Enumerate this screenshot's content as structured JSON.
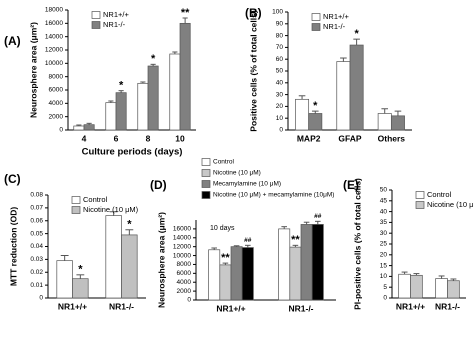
{
  "chart_data": [
    {
      "type": "bar",
      "label": "(A)",
      "ylabel": "Neurosphere area (μm²)",
      "xlabel": "Culture periods (days)",
      "categories": [
        "4",
        "6",
        "8",
        "10"
      ],
      "series": [
        {
          "name": "NR1+/+",
          "color": "#ffffff",
          "values": [
            600,
            4100,
            7000,
            11400
          ],
          "errors": [
            150,
            250,
            200,
            300
          ],
          "signif": [
            null,
            null,
            null,
            null
          ]
        },
        {
          "name": "NR1-/-",
          "color": "#808080",
          "values": [
            800,
            5600,
            9600,
            16000
          ],
          "errors": [
            200,
            300,
            250,
            800
          ],
          "signif": [
            null,
            "*",
            "*",
            "**"
          ]
        }
      ],
      "ylim": [
        0,
        18000
      ],
      "yticks": [
        0,
        2000,
        4000,
        6000,
        8000,
        10000,
        12000,
        14000,
        16000,
        18000
      ],
      "legend": "upper left"
    },
    {
      "type": "bar",
      "label": "(B)",
      "ylabel": "Positive cells (% of total cells)",
      "categories": [
        "MAP2",
        "GFAP",
        "Others"
      ],
      "series": [
        {
          "name": "NR1+/+",
          "color": "#ffffff",
          "values": [
            26,
            58,
            14
          ],
          "errors": [
            3,
            3,
            4
          ],
          "signif": [
            null,
            null,
            null
          ]
        },
        {
          "name": "NR1-/-",
          "color": "#808080",
          "values": [
            14,
            72,
            12
          ],
          "errors": [
            2,
            5,
            4
          ],
          "signif": [
            "*",
            "*",
            null
          ]
        }
      ],
      "ylim": [
        0,
        100
      ],
      "yticks": [
        0,
        10,
        20,
        30,
        40,
        50,
        60,
        70,
        80,
        90,
        100
      ],
      "legend": "upper left"
    },
    {
      "type": "bar",
      "label": "(C)",
      "ylabel": "MTT reduction (OD)",
      "categories": [
        "NR1+/+",
        "NR1-/-"
      ],
      "series": [
        {
          "name": "Control",
          "color": "#ffffff",
          "values": [
            0.029,
            0.064
          ],
          "errors": [
            0.004,
            0.003
          ],
          "signif": [
            null,
            null
          ]
        },
        {
          "name": "Nicotine (10 μM)",
          "color": "#c0c0c0",
          "values": [
            0.015,
            0.049
          ],
          "errors": [
            0.003,
            0.004
          ],
          "signif": [
            "*",
            "*"
          ]
        }
      ],
      "ylim": [
        0,
        0.08
      ],
      "yticks": [
        0,
        0.01,
        0.02,
        0.03,
        0.04,
        0.05,
        0.06,
        0.07,
        0.08
      ],
      "legend": "upper left"
    },
    {
      "type": "bar",
      "label": "(D)",
      "ylabel": "Neurosphere area (μm²)",
      "annotation": "10 days",
      "categories": [
        "NR1+/+",
        "NR1-/-"
      ],
      "series": [
        {
          "name": "Control",
          "color": "#ffffff",
          "values": [
            11300,
            16000
          ],
          "errors": [
            400,
            500
          ],
          "signif": [
            null,
            null
          ]
        },
        {
          "name": "Nicotine (10 μM)",
          "color": "#c8c8c8",
          "values": [
            7900,
            11900
          ],
          "errors": [
            400,
            400
          ],
          "signif": [
            "**",
            "**"
          ]
        },
        {
          "name": "Mecamylamine (10 μM)",
          "color": "#808080",
          "values": [
            12000,
            17000
          ],
          "errors": [
            200,
            500
          ],
          "signif": [
            null,
            null
          ]
        },
        {
          "name": "Nicotine (10 μM) + mecamylamine (10μM)",
          "color": "#000000",
          "values": [
            11800,
            17000
          ],
          "errors": [
            500,
            700
          ],
          "signif": [
            "##",
            "##"
          ]
        }
      ],
      "ylim": [
        0,
        18000
      ],
      "yticks": [
        0,
        2000,
        4000,
        6000,
        8000,
        10000,
        12000,
        14000,
        16000
      ],
      "legend": "above"
    },
    {
      "type": "bar",
      "label": "(E)",
      "ylabel": "PI-positive cells (% of total cells)",
      "categories": [
        "NR1+/+",
        "NR1-/-"
      ],
      "series": [
        {
          "name": "Control",
          "color": "#ffffff",
          "values": [
            11,
            9
          ],
          "errors": [
            1,
            1.2
          ],
          "signif": [
            null,
            null
          ]
        },
        {
          "name": "Nicotine (10 μM)",
          "color": "#c8c8c8",
          "values": [
            10.5,
            8
          ],
          "errors": [
            0.8,
            0.8
          ],
          "signif": [
            null,
            null
          ]
        }
      ],
      "ylim": [
        0,
        50
      ],
      "yticks": [
        0,
        5,
        10,
        15,
        20,
        25,
        30,
        35,
        40,
        45,
        50
      ],
      "legend": "upper left"
    }
  ]
}
